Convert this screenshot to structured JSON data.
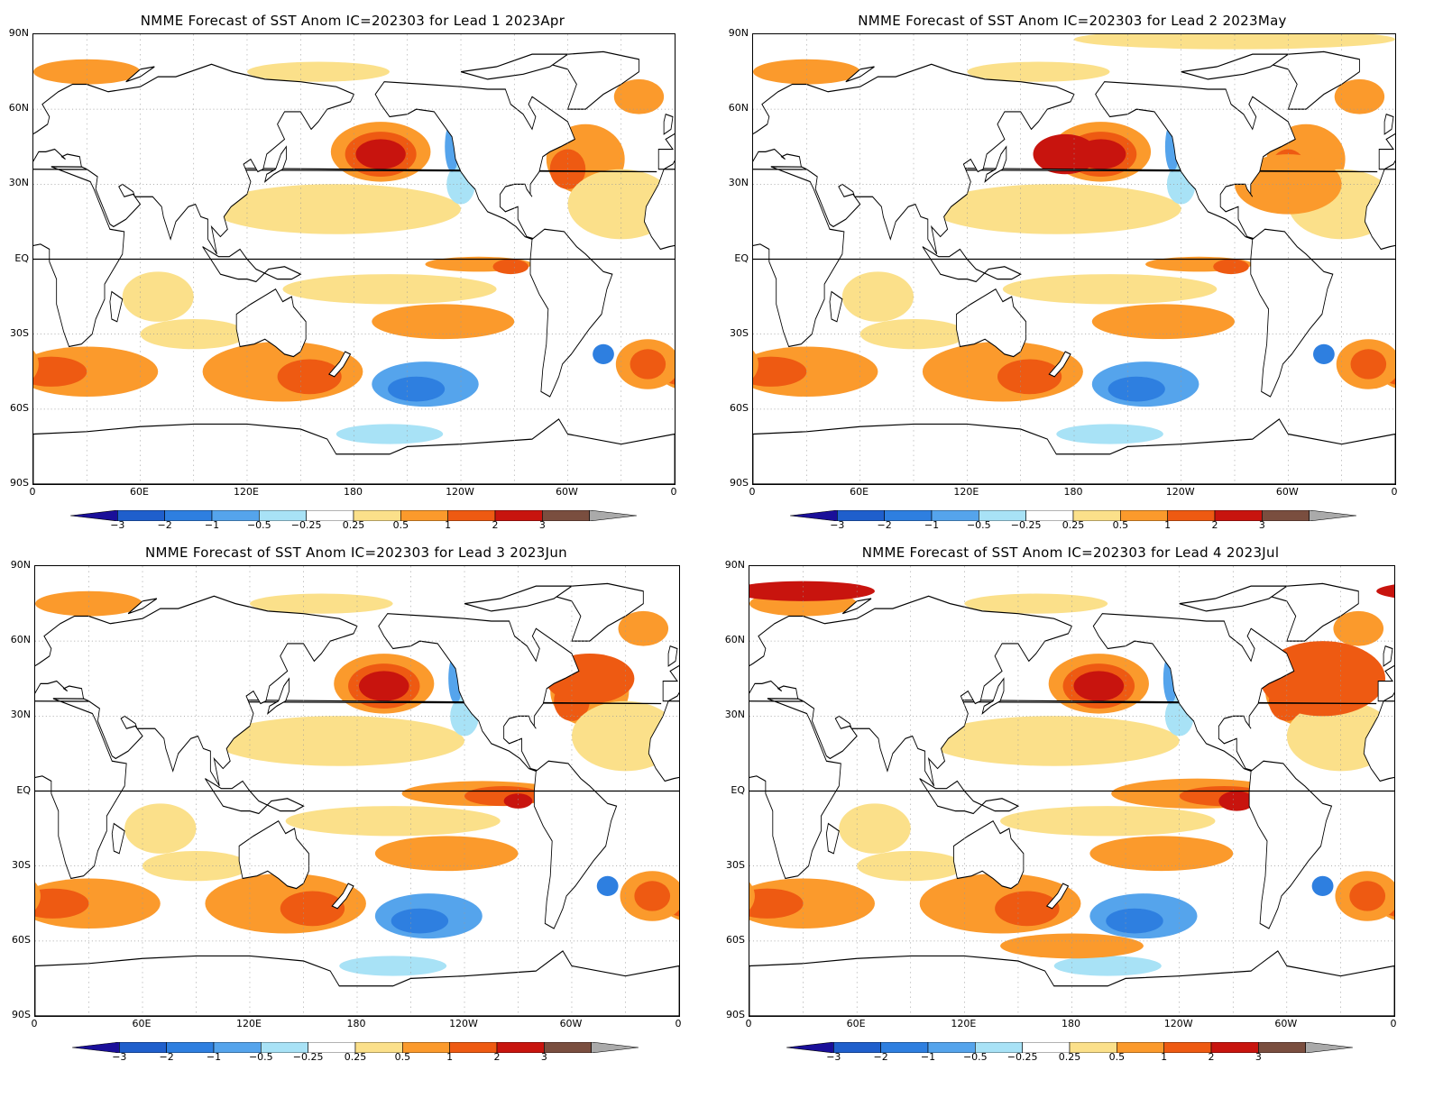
{
  "panels": [
    {
      "title": "NMME Forecast of SST Anom IC=202303 for Lead 1 2023Apr",
      "lead": 1,
      "month": "2023Apr"
    },
    {
      "title": "NMME Forecast of SST Anom IC=202303 for Lead 2 2023May",
      "lead": 2,
      "month": "2023May"
    },
    {
      "title": "NMME Forecast of SST Anom IC=202303 for Lead 3 2023Jun",
      "lead": 3,
      "month": "2023Jun"
    },
    {
      "title": "NMME Forecast of SST Anom IC=202303 for Lead 4 2023Jul",
      "lead": 4,
      "month": "2023Jul"
    }
  ],
  "lat_labels": [
    "90N",
    "60N",
    "30N",
    "EQ",
    "30S",
    "60S",
    "90S"
  ],
  "lon_labels": [
    "0",
    "60E",
    "120E",
    "180",
    "120W",
    "60W",
    "0"
  ],
  "colorbar": {
    "labels": [
      "-3",
      "-2",
      "-1",
      "-0.5",
      "-0.25",
      "0.25",
      "0.5",
      "1",
      "2",
      "3"
    ],
    "colors": [
      "#1a0f99",
      "#1f5fcc",
      "#2e7fe0",
      "#55a4ec",
      "#a8e2f6",
      "#ffffff",
      "#fbe08a",
      "#fb9a2c",
      "#ee5a12",
      "#c8140e",
      "#7a4e3f",
      "#aaaaaa"
    ]
  },
  "colors": {
    "land": "#ffffff",
    "coast": "#000000",
    "warm_light": "#fbe08a",
    "warm_mid": "#fb9a2c",
    "warm_strong": "#ee5a12",
    "warm_very": "#c8140e",
    "cool_light": "#a8e2f6",
    "cool_mid": "#55a4ec",
    "cool_strong": "#2e7fe0",
    "ice": "#9a9a9a"
  }
}
